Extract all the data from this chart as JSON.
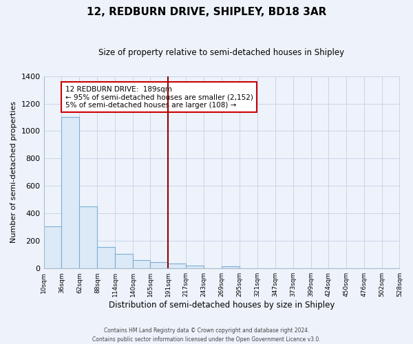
{
  "title": "12, REDBURN DRIVE, SHIPLEY, BD18 3AR",
  "subtitle": "Size of property relative to semi-detached houses in Shipley",
  "xlabel": "Distribution of semi-detached houses by size in Shipley",
  "ylabel": "Number of semi-detached properties",
  "bar_edges": [
    10,
    36,
    62,
    88,
    114,
    140,
    165,
    191,
    217,
    243,
    269,
    295,
    321,
    347,
    373,
    399,
    424,
    450,
    476,
    502,
    528
  ],
  "bar_heights": [
    305,
    1100,
    450,
    155,
    108,
    60,
    45,
    35,
    20,
    0,
    18,
    0,
    0,
    0,
    0,
    0,
    0,
    0,
    0,
    0
  ],
  "bar_color": "#dce9f7",
  "bar_edge_color": "#7bafd4",
  "vline_x": 191,
  "vline_color": "#8b0000",
  "ylim": [
    0,
    1400
  ],
  "yticks": [
    0,
    200,
    400,
    600,
    800,
    1000,
    1200,
    1400
  ],
  "annotation_title": "12 REDBURN DRIVE:  189sqm",
  "annotation_line1": "← 95% of semi-detached houses are smaller (2,152)",
  "annotation_line2": "5% of semi-detached houses are larger (108) →",
  "annotation_box_color": "#ffffff",
  "annotation_box_edge": "#cc0000",
  "footnote1": "Contains HM Land Registry data © Crown copyright and database right 2024.",
  "footnote2": "Contains public sector information licensed under the Open Government Licence v3.0.",
  "tick_labels": [
    "10sqm",
    "36sqm",
    "62sqm",
    "88sqm",
    "114sqm",
    "140sqm",
    "165sqm",
    "191sqm",
    "217sqm",
    "243sqm",
    "269sqm",
    "295sqm",
    "321sqm",
    "347sqm",
    "373sqm",
    "399sqm",
    "424sqm",
    "450sqm",
    "476sqm",
    "502sqm",
    "528sqm"
  ],
  "background_color": "#eef3fb",
  "plot_background": "#eef3fb",
  "grid_color": "#c8d4e8",
  "spine_color": "#aabbcc"
}
